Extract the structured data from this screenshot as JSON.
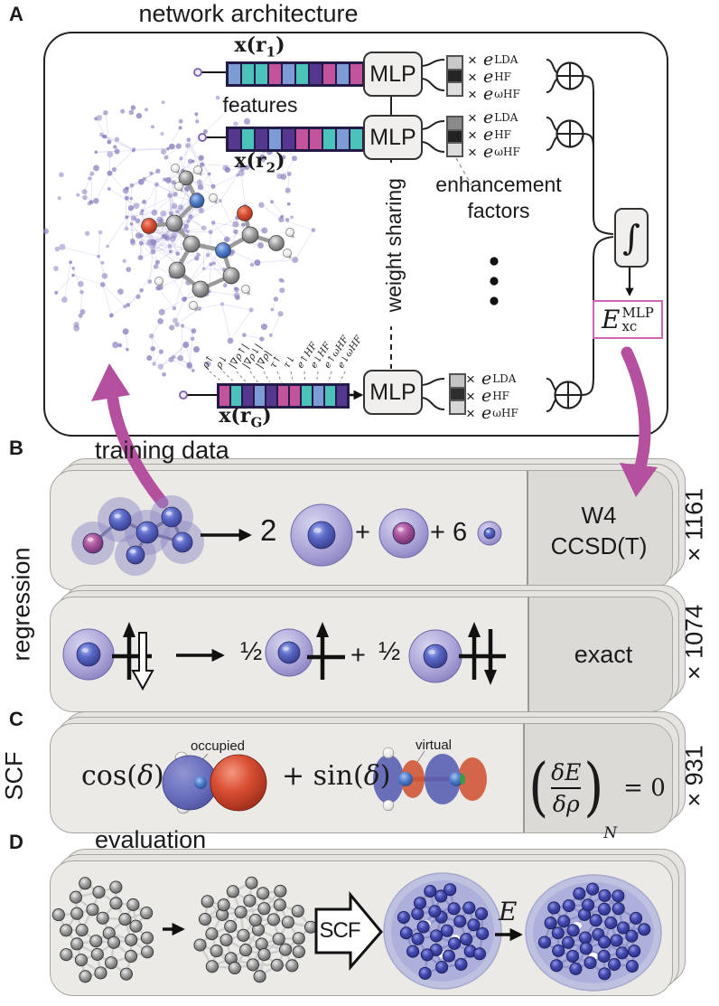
{
  "colors": {
    "accent_magenta": "#b4509e",
    "exc_border": "#cf66b2",
    "card_fill": "#eceae7",
    "card_right_fill": "#dcdad7",
    "cloud_dot": "#8d84c2"
  },
  "panel_a": {
    "label": "A",
    "title": "network architecture",
    "features_label": "features",
    "xr1": {
      "pre": "x(r",
      "sub": "1",
      "post": ")"
    },
    "xr2": {
      "pre": "x(r",
      "sub": "2",
      "post": ")"
    },
    "xrg": {
      "pre": "x(r",
      "sub": "G",
      "post": ")"
    },
    "mlp": "MLP",
    "weight_sharing": "weight sharing",
    "enhancement_line1": "enhancement",
    "enhancement_line2": "factors",
    "integral": "∫",
    "exc": {
      "base": "E",
      "sub": "xc",
      "sup": "MLP"
    },
    "factors": {
      "times": "×",
      "base": "e",
      "sups": [
        "LDA",
        "HF",
        "ωHF"
      ]
    },
    "feature_labels": [
      "ρ↑",
      "ρ↓",
      "|∇ρ↑|",
      "|∇ρ↓|",
      "|∇ρ|",
      "τ↑",
      "τ↓",
      "e↑HF",
      "e↓HF",
      "e↑ωHF",
      "e↓ωHF"
    ],
    "palette": {
      "b": "#7d9bd4",
      "t": "#4cc3ba",
      "m": "#c3549c",
      "p": "#55378f"
    },
    "vectors": {
      "r1": [
        "b",
        "t",
        "t",
        "m",
        "b",
        "t",
        "p",
        "m",
        "b",
        "m",
        "p"
      ],
      "r2": [
        "p",
        "t",
        "p",
        "b",
        "p",
        "m",
        "m",
        "t",
        "b",
        "t",
        "p"
      ],
      "rg": [
        "m",
        "t",
        "p",
        "b",
        "p",
        "m",
        "m",
        "t",
        "b",
        "t",
        "p"
      ]
    },
    "bars": [
      [
        "#c9c9c9",
        "#252525",
        "#dedede"
      ],
      [
        "#8a8a8a",
        "#222222",
        "#dcdcdc"
      ],
      [
        "#c4c4c4",
        "#2e2e2e",
        "#d6d6d6"
      ]
    ]
  },
  "panel_b": {
    "label": "B",
    "title": "training data",
    "side_label": "regression",
    "row1": {
      "coeff": "2",
      "plus": "+",
      "six": "+ 6",
      "card_line1": "W4",
      "card_line2": "CCSD(T)",
      "count": "× 1161"
    },
    "row2": {
      "half1": "½",
      "plus": "+",
      "half2": "½",
      "card": "exact",
      "count": "× 1074"
    }
  },
  "panel_c": {
    "label": "C",
    "side_label": "SCF",
    "cos": {
      "fn": "cos(",
      "arg": "δ",
      "close": ")"
    },
    "sin": {
      "fn": "+ sin(",
      "arg": "δ",
      "close": ")"
    },
    "occupied": "occupied",
    "virtual": "virtual",
    "formula": {
      "lparen": "(",
      "num": "δE",
      "den": "δρ",
      "rparen": ")",
      "sub": "N",
      "eq": "= 0"
    },
    "count": "× 931"
  },
  "panel_d": {
    "label": "D",
    "title": "evaluation",
    "scf": "SCF",
    "e": "E"
  }
}
